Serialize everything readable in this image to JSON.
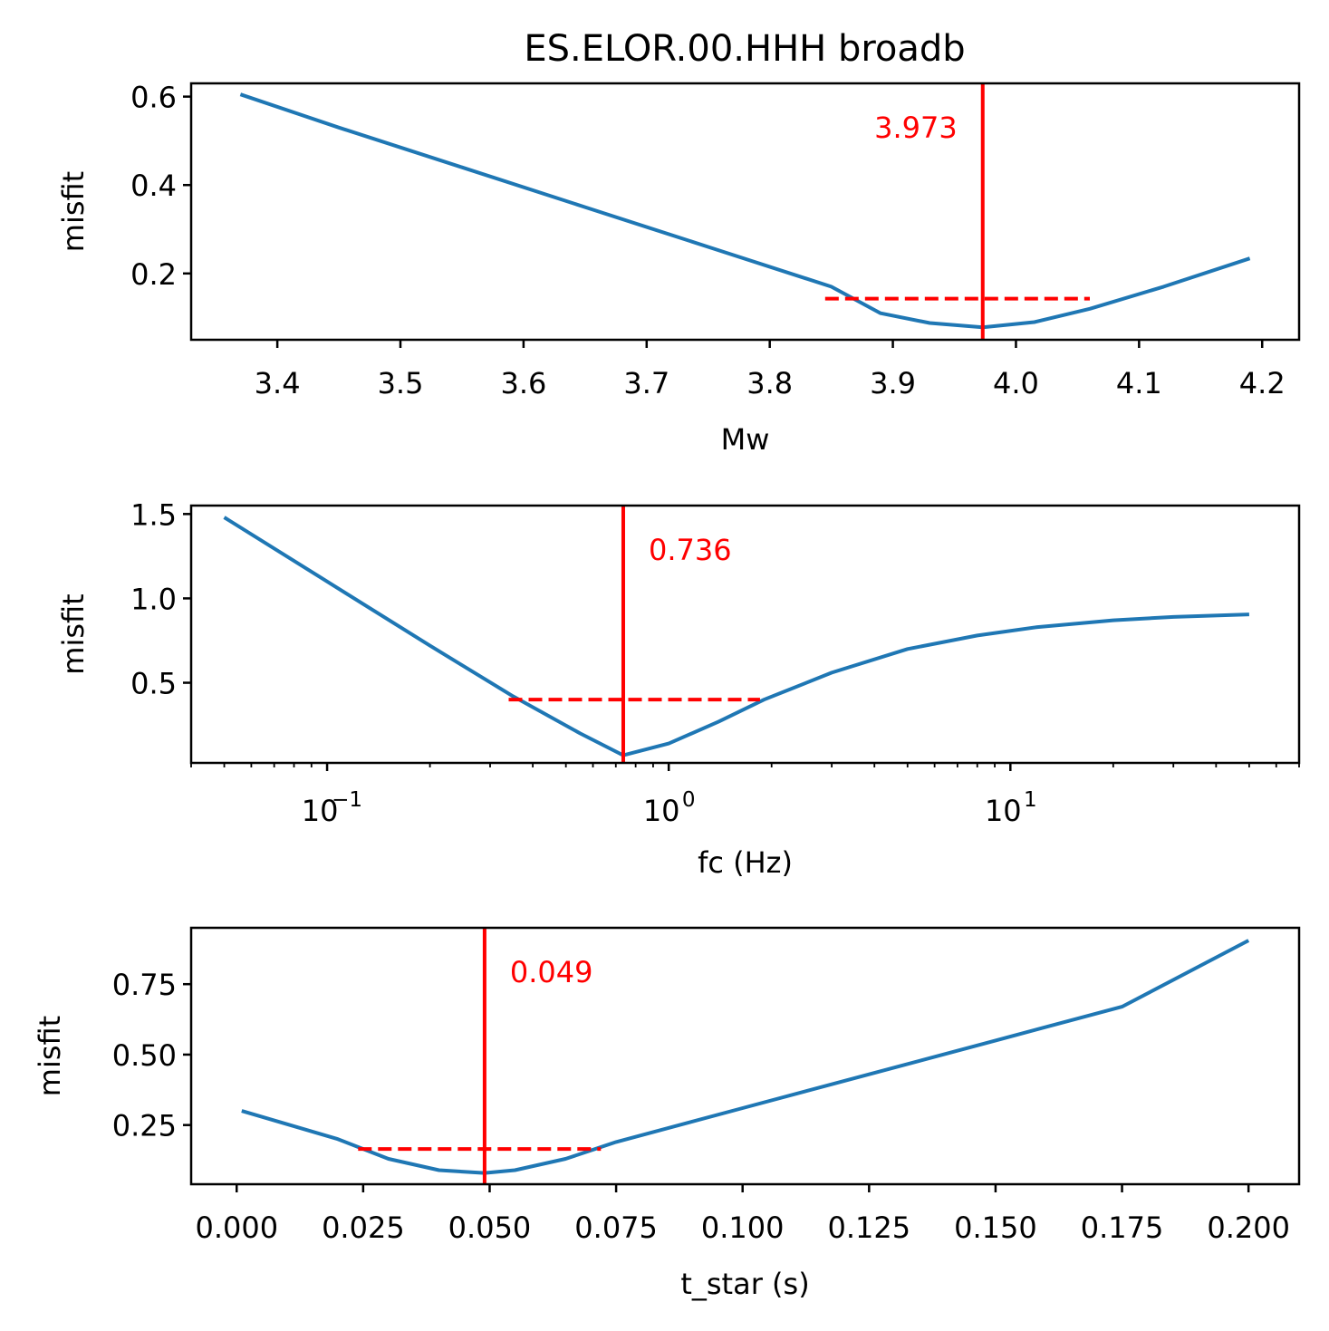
{
  "figure": {
    "title": "ES.ELOR.00.HHH broadb"
  },
  "colors": {
    "curve": "#1f77b4",
    "marker": "#ff0000",
    "axis": "#000000"
  },
  "chart_data": [
    {
      "type": "line",
      "title": "ES.ELOR.00.HHH broadb",
      "xlabel": "Mw",
      "ylabel": "misfit",
      "xscale": "linear",
      "xlim": [
        3.33,
        4.23
      ],
      "ylim": [
        0.05,
        0.63
      ],
      "xticks": [
        3.4,
        3.5,
        3.6,
        3.7,
        3.8,
        3.9,
        4.0,
        4.1,
        4.2
      ],
      "xtick_labels": [
        "3.4",
        "3.5",
        "3.6",
        "3.7",
        "3.8",
        "3.9",
        "4.0",
        "4.1",
        "4.2"
      ],
      "yticks": [
        0.2,
        0.4,
        0.6
      ],
      "ytick_labels": [
        "0.2",
        "0.4",
        "0.6"
      ],
      "series": [
        {
          "x": [
            3.37,
            3.45,
            3.55,
            3.65,
            3.75,
            3.85,
            3.89,
            3.93,
            3.973,
            4.015,
            4.06,
            4.12,
            4.19
          ],
          "y": [
            0.605,
            0.53,
            0.44,
            0.35,
            0.26,
            0.17,
            0.11,
            0.088,
            0.078,
            0.09,
            0.12,
            0.17,
            0.234
          ]
        }
      ],
      "best_value": 3.973,
      "best_label": "3.973",
      "range": {
        "x": [
          3.845,
          4.06
        ],
        "y": 0.143
      },
      "grid": false
    },
    {
      "type": "line",
      "title": "",
      "xlabel": "fc (Hz)",
      "ylabel": "misfit",
      "xscale": "log",
      "xlim": [
        0.04,
        70
      ],
      "ylim": [
        0.025,
        1.55
      ],
      "xticks": [
        0.1,
        1,
        10
      ],
      "xtick_labels": [
        "10",
        "10",
        "10"
      ],
      "xtick_exponents": [
        "−1",
        "0",
        "1"
      ],
      "yticks": [
        0.5,
        1.0,
        1.5
      ],
      "ytick_labels": [
        "0.5",
        "1.0",
        "1.5"
      ],
      "series": [
        {
          "x": [
            0.05,
            0.1,
            0.2,
            0.35,
            0.55,
            0.736,
            1.0,
            1.4,
            1.9,
            3,
            5,
            8,
            12,
            20,
            30,
            50
          ],
          "y": [
            1.48,
            1.1,
            0.72,
            0.42,
            0.2,
            0.07,
            0.14,
            0.27,
            0.4,
            0.56,
            0.7,
            0.78,
            0.83,
            0.87,
            0.89,
            0.905
          ]
        }
      ],
      "best_value": 0.736,
      "best_label": "0.736",
      "range": {
        "x": [
          0.34,
          1.85
        ],
        "y": 0.4
      },
      "grid": false
    },
    {
      "type": "line",
      "title": "",
      "xlabel": "t_star (s)",
      "ylabel": "misfit",
      "xscale": "linear",
      "xlim": [
        -0.009,
        0.21
      ],
      "ylim": [
        0.04,
        0.95
      ],
      "xticks": [
        0.0,
        0.025,
        0.05,
        0.075,
        0.1,
        0.125,
        0.15,
        0.175,
        0.2
      ],
      "xtick_labels": [
        "0.000",
        "0.025",
        "0.050",
        "0.075",
        "0.100",
        "0.125",
        "0.150",
        "0.175",
        "0.200"
      ],
      "yticks": [
        0.25,
        0.5,
        0.75
      ],
      "ytick_labels": [
        "0.25",
        "0.50",
        "0.75"
      ],
      "series": [
        {
          "x": [
            0.001,
            0.02,
            0.03,
            0.04,
            0.049,
            0.055,
            0.065,
            0.075,
            0.1,
            0.125,
            0.15,
            0.175,
            0.2
          ],
          "y": [
            0.3,
            0.2,
            0.13,
            0.09,
            0.08,
            0.09,
            0.13,
            0.19,
            0.31,
            0.43,
            0.55,
            0.67,
            0.905
          ]
        }
      ],
      "best_value": 0.049,
      "best_label": "0.049",
      "range": {
        "x": [
          0.024,
          0.072
        ],
        "y": 0.165
      },
      "grid": false
    }
  ]
}
